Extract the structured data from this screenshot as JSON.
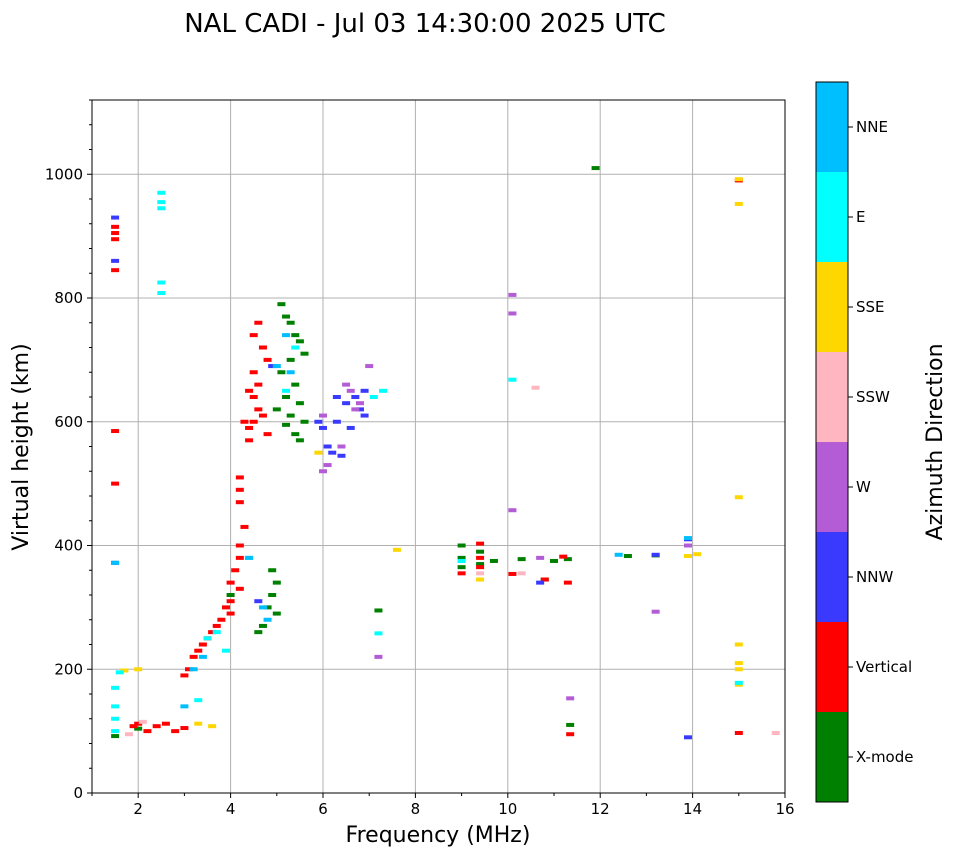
{
  "chart_data": {
    "type": "scatter",
    "title": "NAL CADI - Jul 03 14:30:00 2025 UTC",
    "xlabel": "Frequency (MHz)",
    "ylabel": "Virtual height (km)",
    "xlim": [
      1,
      16
    ],
    "ylim": [
      0,
      1120
    ],
    "xticks": [
      2,
      4,
      6,
      8,
      10,
      12,
      14,
      16
    ],
    "yticks": [
      0,
      200,
      400,
      600,
      800,
      1000
    ],
    "grid": true,
    "colorbar": {
      "label": "Azimuth Direction",
      "categories": [
        {
          "name": "X-mode",
          "color": "#008000"
        },
        {
          "name": "Vertical",
          "color": "#ff0000"
        },
        {
          "name": "NNW",
          "color": "#3a3aff"
        },
        {
          "name": "W",
          "color": "#b45cd6"
        },
        {
          "name": "SSW",
          "color": "#ffb6c1"
        },
        {
          "name": "SSE",
          "color": "#ffd700"
        },
        {
          "name": "E",
          "color": "#00ffff"
        },
        {
          "name": "NNE",
          "color": "#00bfff"
        }
      ]
    },
    "series": [
      {
        "name": "X-mode",
        "points": [
          [
            11.9,
            1010
          ],
          [
            5.1,
            790
          ],
          [
            5.2,
            770
          ],
          [
            5.3,
            760
          ],
          [
            5.4,
            740
          ],
          [
            5.5,
            730
          ],
          [
            5.6,
            710
          ],
          [
            5.3,
            700
          ],
          [
            5.1,
            680
          ],
          [
            5.4,
            660
          ],
          [
            5.2,
            640
          ],
          [
            5.5,
            630
          ],
          [
            5.0,
            620
          ],
          [
            5.3,
            610
          ],
          [
            5.6,
            600
          ],
          [
            5.2,
            595
          ],
          [
            5.4,
            580
          ],
          [
            5.5,
            570
          ],
          [
            4.0,
            320
          ],
          [
            4.9,
            360
          ],
          [
            5.0,
            340
          ],
          [
            4.9,
            320
          ],
          [
            4.8,
            300
          ],
          [
            5.0,
            290
          ],
          [
            4.7,
            270
          ],
          [
            4.6,
            260
          ],
          [
            7.2,
            295
          ],
          [
            9.0,
            400
          ],
          [
            9.0,
            380
          ],
          [
            9.0,
            365
          ],
          [
            9.4,
            390
          ],
          [
            9.4,
            370
          ],
          [
            9.7,
            375
          ],
          [
            10.3,
            378
          ],
          [
            11.0,
            375
          ],
          [
            10.8,
            345
          ],
          [
            11.3,
            378
          ],
          [
            12.6,
            383
          ],
          [
            13.2,
            384
          ],
          [
            11.35,
            110
          ],
          [
            1.5,
            92
          ],
          [
            2.0,
            104
          ]
        ]
      },
      {
        "name": "Vertical",
        "points": [
          [
            1.5,
            915
          ],
          [
            1.5,
            905
          ],
          [
            1.5,
            895
          ],
          [
            1.5,
            845
          ],
          [
            1.5,
            585
          ],
          [
            1.5,
            500
          ],
          [
            4.2,
            510
          ],
          [
            4.2,
            490
          ],
          [
            4.2,
            470
          ],
          [
            4.3,
            430
          ],
          [
            4.2,
            400
          ],
          [
            4.2,
            380
          ],
          [
            4.1,
            360
          ],
          [
            4.0,
            340
          ],
          [
            4.2,
            330
          ],
          [
            4.0,
            310
          ],
          [
            3.9,
            300
          ],
          [
            4.0,
            290
          ],
          [
            3.8,
            280
          ],
          [
            3.7,
            270
          ],
          [
            3.6,
            260
          ],
          [
            3.5,
            250
          ],
          [
            3.4,
            240
          ],
          [
            3.3,
            230
          ],
          [
            3.2,
            220
          ],
          [
            3.1,
            200
          ],
          [
            3.0,
            190
          ],
          [
            4.5,
            740
          ],
          [
            4.6,
            760
          ],
          [
            4.7,
            720
          ],
          [
            4.8,
            700
          ],
          [
            4.5,
            680
          ],
          [
            4.6,
            660
          ],
          [
            4.4,
            650
          ],
          [
            4.5,
            640
          ],
          [
            4.6,
            620
          ],
          [
            4.5,
            600
          ],
          [
            4.4,
            590
          ],
          [
            4.7,
            610
          ],
          [
            4.8,
            580
          ],
          [
            4.3,
            600
          ],
          [
            4.4,
            570
          ],
          [
            1.9,
            108
          ],
          [
            2.0,
            112
          ],
          [
            2.2,
            100
          ],
          [
            2.4,
            108
          ],
          [
            2.6,
            112
          ],
          [
            2.8,
            100
          ],
          [
            3.0,
            105
          ],
          [
            9.0,
            355
          ],
          [
            9.4,
            403
          ],
          [
            9.4,
            380
          ],
          [
            9.4,
            365
          ],
          [
            10.1,
            354
          ],
          [
            10.8,
            345
          ],
          [
            11.2,
            382
          ],
          [
            11.3,
            340
          ],
          [
            11.35,
            95
          ],
          [
            15.0,
            990
          ],
          [
            15.0,
            97
          ]
        ]
      },
      {
        "name": "NNW",
        "points": [
          [
            1.5,
            372
          ],
          [
            1.5,
            860
          ],
          [
            1.5,
            930
          ],
          [
            4.6,
            310
          ],
          [
            4.9,
            690
          ],
          [
            6.3,
            640
          ],
          [
            6.5,
            630
          ],
          [
            6.7,
            640
          ],
          [
            6.8,
            620
          ],
          [
            6.9,
            610
          ],
          [
            6.0,
            590
          ],
          [
            6.1,
            560
          ],
          [
            6.2,
            550
          ],
          [
            6.4,
            545
          ],
          [
            6.3,
            600
          ],
          [
            6.6,
            590
          ],
          [
            6.9,
            650
          ],
          [
            5.9,
            600
          ],
          [
            10.7,
            340
          ],
          [
            13.2,
            385
          ],
          [
            13.9,
            90
          ],
          [
            13.9,
            410
          ]
        ]
      },
      {
        "name": "W",
        "points": [
          [
            6.5,
            660
          ],
          [
            6.6,
            650
          ],
          [
            6.8,
            630
          ],
          [
            6.7,
            620
          ],
          [
            6.0,
            520
          ],
          [
            6.1,
            530
          ],
          [
            6.0,
            610
          ],
          [
            6.4,
            560
          ],
          [
            7.0,
            690
          ],
          [
            7.2,
            220
          ],
          [
            10.1,
            805
          ],
          [
            10.1,
            775
          ],
          [
            10.1,
            457
          ],
          [
            10.7,
            380
          ],
          [
            13.2,
            293
          ],
          [
            11.35,
            153
          ],
          [
            13.9,
            400
          ]
        ]
      },
      {
        "name": "SSW",
        "points": [
          [
            10.6,
            655
          ],
          [
            10.3,
            355
          ],
          [
            15.8,
            97
          ],
          [
            9.4,
            355
          ],
          [
            2.1,
            115
          ],
          [
            1.8,
            95
          ]
        ]
      },
      {
        "name": "SSE",
        "points": [
          [
            15.0,
            992
          ],
          [
            15.0,
            952
          ],
          [
            15.0,
            478
          ],
          [
            15.0,
            240
          ],
          [
            15.0,
            210
          ],
          [
            15.0,
            200
          ],
          [
            15.0,
            175
          ],
          [
            14.1,
            386
          ],
          [
            13.9,
            383
          ],
          [
            9.4,
            345
          ],
          [
            7.6,
            393
          ],
          [
            1.7,
            198
          ],
          [
            2.0,
            200
          ],
          [
            3.3,
            112
          ],
          [
            3.6,
            108
          ],
          [
            5.9,
            550
          ]
        ]
      },
      {
        "name": "E",
        "points": [
          [
            2.5,
            970
          ],
          [
            2.5,
            955
          ],
          [
            2.5,
            945
          ],
          [
            2.5,
            825
          ],
          [
            2.5,
            808
          ],
          [
            1.5,
            170
          ],
          [
            1.5,
            140
          ],
          [
            1.5,
            120
          ],
          [
            1.5,
            100
          ],
          [
            1.6,
            195
          ],
          [
            3.3,
            150
          ],
          [
            3.5,
            250
          ],
          [
            3.7,
            260
          ],
          [
            3.9,
            230
          ],
          [
            7.2,
            258
          ],
          [
            7.3,
            650
          ],
          [
            7.1,
            640
          ],
          [
            10.1,
            668
          ],
          [
            9.0,
            375
          ],
          [
            15.0,
            178
          ],
          [
            5.4,
            720
          ],
          [
            5.2,
            650
          ],
          [
            4.4,
            380
          ]
        ]
      },
      {
        "name": "NNE",
        "points": [
          [
            5.2,
            740
          ],
          [
            5.0,
            690
          ],
          [
            5.3,
            680
          ],
          [
            3.2,
            200
          ],
          [
            3.4,
            220
          ],
          [
            4.4,
            380
          ],
          [
            4.8,
            280
          ],
          [
            4.7,
            300
          ],
          [
            3.0,
            140
          ],
          [
            12.4,
            385
          ],
          [
            13.9,
            412
          ],
          [
            1.5,
            372
          ]
        ]
      }
    ]
  }
}
